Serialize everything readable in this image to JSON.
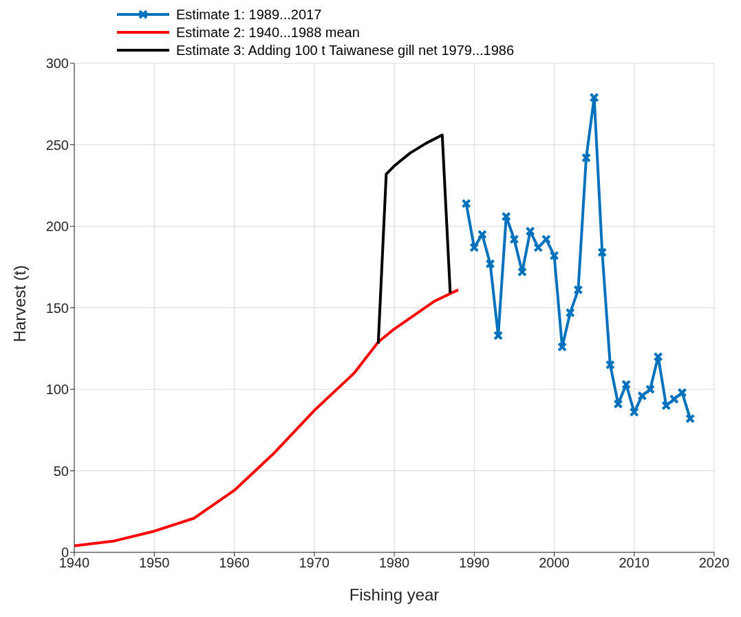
{
  "chart_data": {
    "type": "line",
    "xlabel": "Fishing year",
    "ylabel": "Harvest (t)",
    "xlim": [
      1940,
      2020
    ],
    "xticks": [
      1940,
      1950,
      1960,
      1970,
      1980,
      1990,
      2000,
      2010,
      2020
    ],
    "ylim": [
      0,
      300
    ],
    "yticks": [
      0,
      50,
      100,
      150,
      200,
      250,
      300
    ],
    "grid": true,
    "legend": "top left",
    "line_style": "solid",
    "series": [
      {
        "name": "Estimate 1: 1989...2017",
        "color": "#0072bd",
        "marker": "cross",
        "x": [
          1989,
          1990,
          1991,
          1992,
          1993,
          1994,
          1995,
          1996,
          1997,
          1998,
          1999,
          2000,
          2001,
          2002,
          2003,
          2004,
          2005,
          2006,
          2007,
          2008,
          2009,
          2010,
          2011,
          2012,
          2013,
          2014,
          2015,
          2016,
          2017
        ],
        "values": [
          214,
          187,
          195,
          177,
          133,
          206,
          192,
          172,
          197,
          187,
          192,
          182,
          126,
          147,
          161,
          242,
          279,
          184,
          115,
          91,
          103,
          86,
          96,
          100,
          120,
          90,
          94,
          98,
          82
        ]
      },
      {
        "name": "Estimate 2: 1940...1988 mean",
        "color": "#ff0000",
        "marker": "none",
        "x": [
          1940,
          1945,
          1950,
          1955,
          1960,
          1965,
          1970,
          1975,
          1978,
          1980,
          1985,
          1988
        ],
        "values": [
          4,
          7,
          13,
          21,
          38,
          61,
          87,
          110,
          129,
          137,
          154,
          161
        ]
      },
      {
        "name": "Estimate 3: Adding 100 t Taiwanese gill net 1979...1986",
        "color": "#000000",
        "marker": "none",
        "x": [
          1978,
          1979,
          1980,
          1982,
          1984,
          1986,
          1987
        ],
        "values": [
          128,
          232,
          237,
          245,
          251,
          256,
          159
        ]
      }
    ]
  }
}
